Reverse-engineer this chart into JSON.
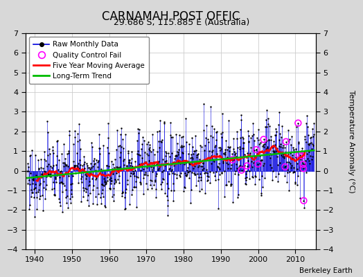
{
  "title": "CARNAMAH POST OFFIC",
  "subtitle": "29.686 S, 115.885 E (Australia)",
  "ylabel": "Temperature Anomaly (°C)",
  "credit": "Berkeley Earth",
  "xlim": [
    1937.5,
    2015.5
  ],
  "ylim": [
    -4,
    7
  ],
  "yticks": [
    -4,
    -3,
    -2,
    -1,
    0,
    1,
    2,
    3,
    4,
    5,
    6,
    7
  ],
  "xticks": [
    1940,
    1950,
    1960,
    1970,
    1980,
    1990,
    2000,
    2010
  ],
  "fig_bg_color": "#d8d8d8",
  "plot_bg": "#ffffff",
  "raw_color": "#0000dd",
  "dot_color": "#000000",
  "qc_color": "#ff00ff",
  "moving_avg_color": "#ff0000",
  "trend_color": "#00bb00",
  "seed": 77
}
